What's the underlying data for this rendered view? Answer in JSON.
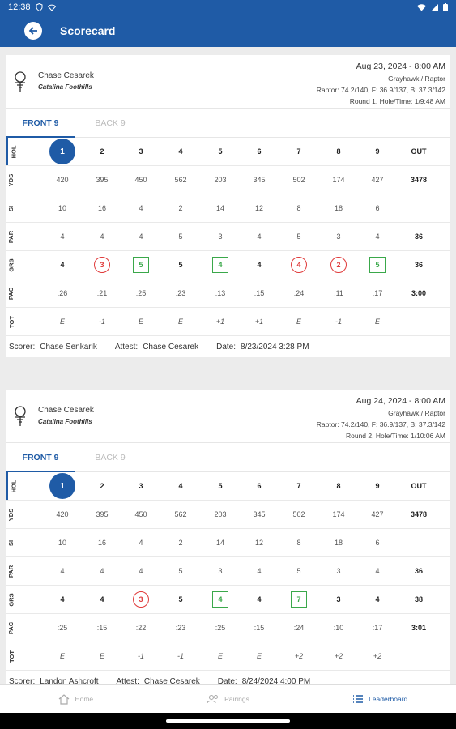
{
  "status_bar": {
    "time": "12:38",
    "left_icons": [
      "shield-icon",
      "wifi-icon"
    ],
    "right_icons": [
      "wifi-icon",
      "signal-icon",
      "battery-icon"
    ]
  },
  "app_bar": {
    "title": "Scorecard",
    "back_icon": "back-arrow-icon"
  },
  "colors": {
    "primary": "#1f5ba6",
    "birdie": "#e03b3b",
    "bogey": "#3aa84a"
  },
  "cards": [
    {
      "player": "Chase Cesarek",
      "course": "Catalina Foothills",
      "date": "Aug 23, 2024 - 8:00 AM",
      "tees": "Grayhawk / Raptor",
      "ratings": "Raptor: 74.2/140, F: 36.9/137, B: 37.3/142",
      "round": "Round 1, Hole/Time: 1/9:48 AM",
      "tabs": [
        "FRONT 9",
        "BACK 9"
      ],
      "labels": [
        "HOL",
        "YDS",
        "SI",
        "PAR",
        "GRS",
        "PAC",
        "TOT"
      ],
      "holes": [
        "1",
        "2",
        "3",
        "4",
        "5",
        "6",
        "7",
        "8",
        "9",
        "OUT"
      ],
      "yds": [
        "420",
        "395",
        "450",
        "562",
        "203",
        "345",
        "502",
        "174",
        "427",
        "3478"
      ],
      "si": [
        "10",
        "16",
        "4",
        "2",
        "14",
        "12",
        "8",
        "18",
        "6",
        ""
      ],
      "par": [
        "4",
        "4",
        "4",
        "5",
        "3",
        "4",
        "5",
        "3",
        "4",
        "36"
      ],
      "grs": [
        "4",
        "3",
        "5",
        "5",
        "4",
        "4",
        "4",
        "2",
        "5",
        "36"
      ],
      "grs_marks": [
        "",
        "birdie",
        "bogey",
        "",
        "bogey",
        "",
        "birdie",
        "birdie",
        "bogey",
        ""
      ],
      "pac": [
        ":26",
        ":21",
        ":25",
        ":23",
        ":13",
        ":15",
        ":24",
        ":11",
        ":17",
        "3:00"
      ],
      "tot": [
        "E",
        "-1",
        "E",
        "E",
        "+1",
        "+1",
        "E",
        "-1",
        "E",
        ""
      ],
      "footer": {
        "scorer_label": "Scorer:",
        "scorer": "Chase Senkarik",
        "attest_label": "Attest:",
        "attest": "Chase Cesarek",
        "date_label": "Date:",
        "date": "8/23/2024 3:28 PM"
      }
    },
    {
      "player": "Chase Cesarek",
      "course": "Catalina Foothills",
      "date": "Aug 24, 2024 - 8:00 AM",
      "tees": "Grayhawk / Raptor",
      "ratings": "Raptor: 74.2/140, F: 36.9/137, B: 37.3/142",
      "round": "Round 2, Hole/Time: 1/10:06 AM",
      "tabs": [
        "FRONT 9",
        "BACK 9"
      ],
      "labels": [
        "HOL",
        "YDS",
        "SI",
        "PAR",
        "GRS",
        "PAC",
        "TOT"
      ],
      "holes": [
        "1",
        "2",
        "3",
        "4",
        "5",
        "6",
        "7",
        "8",
        "9",
        "OUT"
      ],
      "yds": [
        "420",
        "395",
        "450",
        "562",
        "203",
        "345",
        "502",
        "174",
        "427",
        "3478"
      ],
      "si": [
        "10",
        "16",
        "4",
        "2",
        "14",
        "12",
        "8",
        "18",
        "6",
        ""
      ],
      "par": [
        "4",
        "4",
        "4",
        "5",
        "3",
        "4",
        "5",
        "3",
        "4",
        "36"
      ],
      "grs": [
        "4",
        "4",
        "3",
        "5",
        "4",
        "4",
        "7",
        "3",
        "4",
        "38"
      ],
      "grs_marks": [
        "",
        "",
        "birdie",
        "",
        "bogey",
        "",
        "bogey",
        "",
        "",
        ""
      ],
      "pac": [
        ":25",
        ":15",
        ":22",
        ":23",
        ":25",
        ":15",
        ":24",
        ":10",
        ":17",
        "3:01"
      ],
      "tot": [
        "E",
        "E",
        "-1",
        "-1",
        "E",
        "E",
        "+2",
        "+2",
        "+2",
        ""
      ],
      "footer": {
        "scorer_label": "Scorer:",
        "scorer": "Landon Ashcroft",
        "attest_label": "Attest:",
        "attest": "Chase Cesarek",
        "date_label": "Date:",
        "date": "8/24/2024 4:00 PM"
      }
    }
  ],
  "bottom_nav": [
    {
      "label": "Home",
      "icon": "home-icon"
    },
    {
      "label": "Pairings",
      "icon": "people-icon"
    },
    {
      "label": "Leaderboard",
      "icon": "list-icon"
    }
  ]
}
